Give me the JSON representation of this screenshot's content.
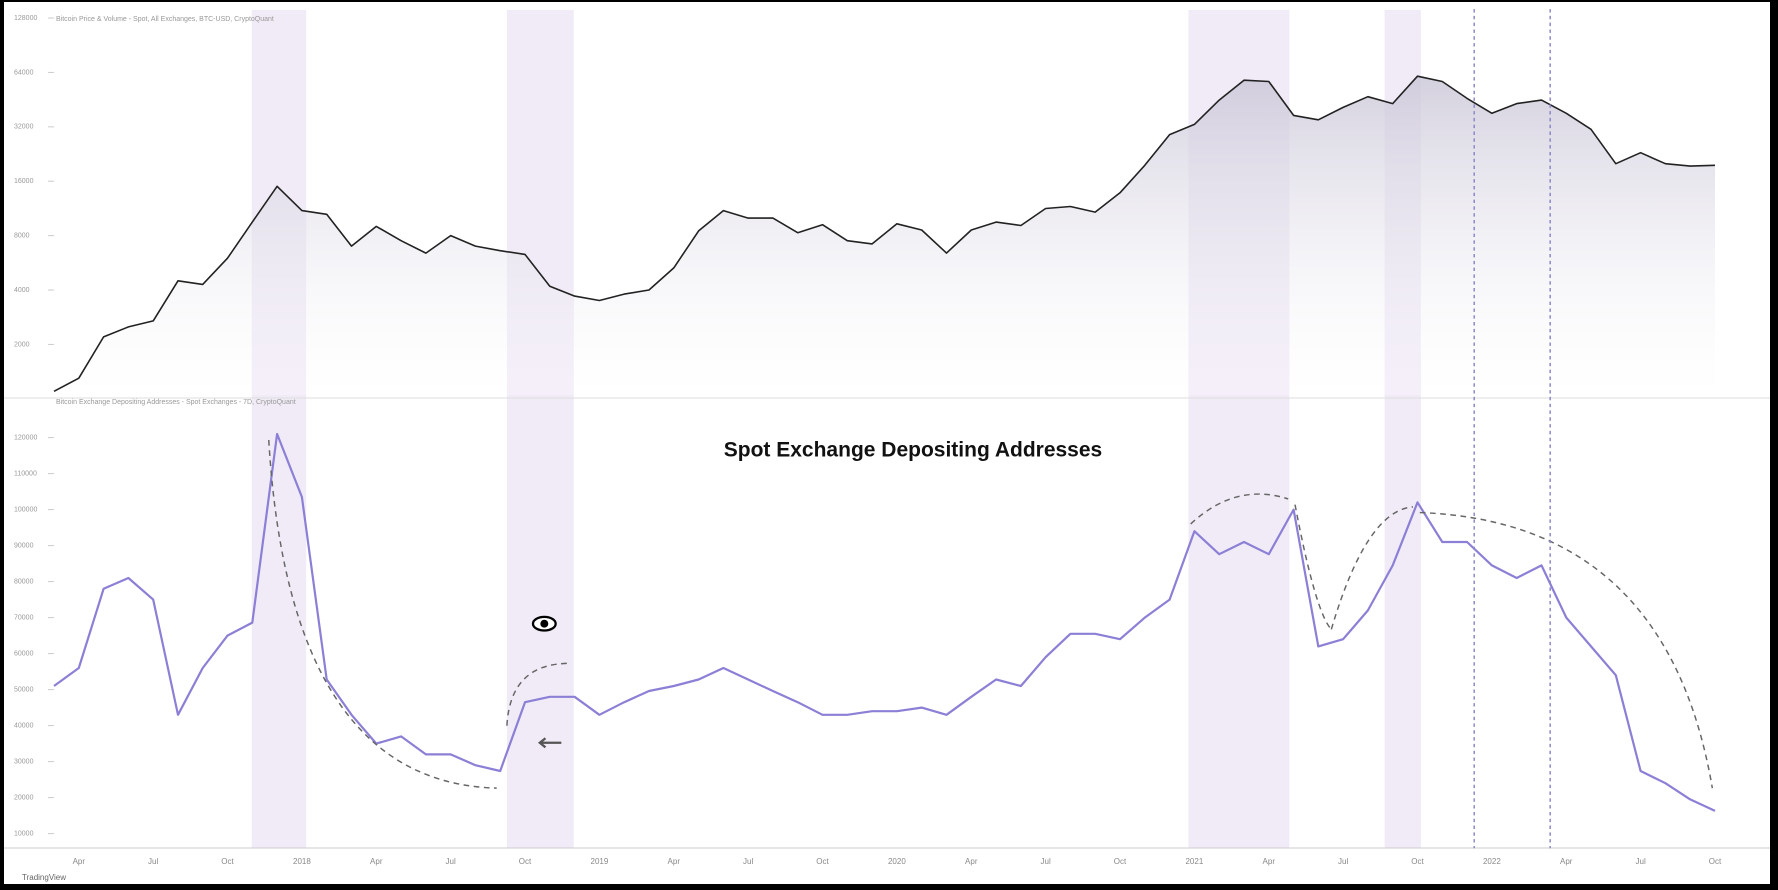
{
  "chart_data": [
    {
      "type": "area",
      "title": "Bitcoin Price & Volume - Spot, All Exchanges, BTC-USD, CryptoQuant",
      "color": "#222222",
      "log_scale": true,
      "values": [
        1100,
        1300,
        2200,
        2500,
        2700,
        4500,
        4300,
        6000,
        9500,
        15000,
        11000,
        10500,
        7000,
        9000,
        7500,
        6400,
        8000,
        7000,
        6600,
        6300,
        4200,
        3700,
        3500,
        3800,
        4000,
        5300,
        8500,
        11000,
        10000,
        10000,
        8300,
        9200,
        7500,
        7200,
        9300,
        8600,
        6400,
        8600,
        9500,
        9100,
        11300,
        11600,
        10800,
        13800,
        19600,
        29000,
        33000,
        45000,
        58000,
        57000,
        37000,
        35000,
        41000,
        47000,
        43000,
        61000,
        57000,
        46000,
        38000,
        43000,
        45000,
        38000,
        31000,
        20000,
        23000,
        20000,
        19400,
        19600
      ],
      "ylim": [
        1050,
        140000
      ],
      "yticks": [
        2000,
        4000,
        8000,
        16000,
        32000,
        64000,
        128000
      ]
    },
    {
      "type": "line",
      "title": "Bitcoin Exchange Depositing Addresses - Spot Exchanges - 7D, CryptoQuant",
      "annotation": "Spot Exchange Depositing Addresses",
      "color": "#8b7fd6",
      "categories": [
        null,
        "Apr",
        null,
        null,
        "Jul",
        null,
        null,
        "Oct",
        null,
        null,
        "2018",
        null,
        null,
        "Apr",
        null,
        null,
        "Jul",
        null,
        null,
        "Oct",
        null,
        null,
        "2019",
        null,
        null,
        "Apr",
        null,
        null,
        "Jul",
        null,
        null,
        "Oct",
        null,
        null,
        "2020",
        null,
        null,
        "Apr",
        null,
        null,
        "Jul",
        null,
        null,
        "Oct",
        null,
        null,
        "2021",
        null,
        null,
        "Apr",
        null,
        null,
        "Jul",
        null,
        null,
        "Oct",
        null,
        null,
        "2022",
        null,
        null,
        "Apr",
        null,
        null,
        "Jul",
        null,
        null,
        "Oct"
      ],
      "values": [
        51000,
        56000,
        78000,
        81000,
        75000,
        43000,
        56000,
        65000,
        68600,
        121000,
        103500,
        52800,
        43000,
        35000,
        37000,
        32000,
        32000,
        29000,
        27400,
        46500,
        48000,
        48000,
        43000,
        46500,
        49600,
        51000,
        52800,
        56000,
        52800,
        49600,
        46500,
        43000,
        43000,
        44000,
        44000,
        45000,
        43000,
        48000,
        52800,
        51000,
        59000,
        65500,
        65500,
        64000,
        70000,
        75000,
        94000,
        87600,
        91000,
        87600,
        100000,
        62000,
        64000,
        72000,
        84500,
        102000,
        91000,
        91000,
        84500,
        81000,
        84500,
        70000,
        62000,
        54000,
        27400,
        24000,
        19500,
        16300
      ],
      "ylim": [
        6000,
        131000
      ],
      "yticks": [
        10000,
        20000,
        30000,
        40000,
        50000,
        60000,
        70000,
        80000,
        90000,
        100000,
        110000,
        120000
      ]
    }
  ],
  "watermark": "TradingView"
}
